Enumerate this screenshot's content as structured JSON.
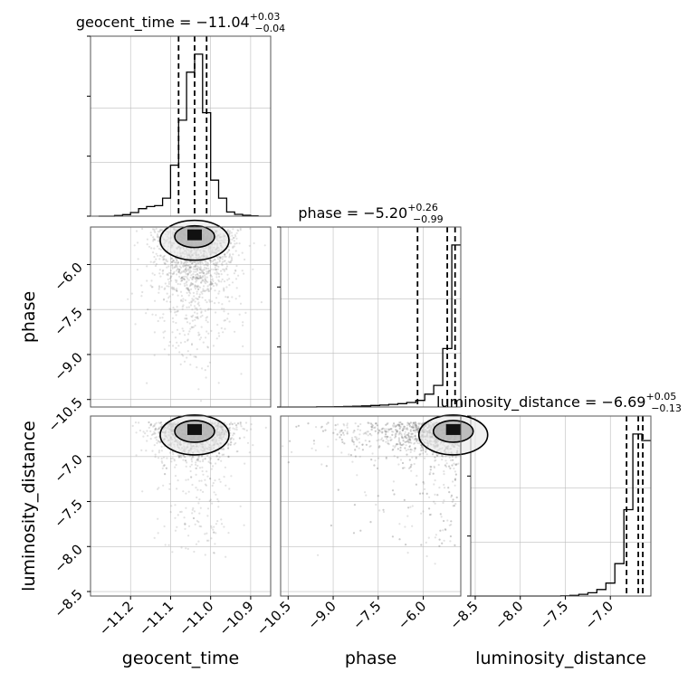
{
  "chart_data": {
    "type": "corner",
    "parameters": [
      "geocent_time",
      "phase",
      "luminosity_distance"
    ],
    "axis_labels": {
      "x": [
        "geocent_time",
        "phase",
        "luminosity_distance"
      ],
      "y": [
        "phase",
        "luminosity_distance"
      ]
    },
    "ranges": {
      "geocent_time": [
        -11.3,
        -10.85
      ],
      "phase": [
        -10.75,
        -4.75
      ],
      "luminosity_distance": [
        -8.55,
        -6.55
      ]
    },
    "ticks": {
      "geocent_time": {
        "values": [
          -11.2,
          -11.1,
          -11.0,
          -10.9
        ],
        "labels": [
          "−11.2",
          "−11.1",
          "−11.0",
          "−10.9"
        ]
      },
      "phase": {
        "values": [
          -10.5,
          -9.0,
          -7.5,
          -6.0
        ],
        "labels": [
          "−10.5",
          "−9.0",
          "−7.5",
          "−6.0"
        ]
      },
      "luminosity_distance": {
        "values": [
          -8.5,
          -8.0,
          -7.5,
          -7.0
        ],
        "labels": [
          "−8.5",
          "−8.0",
          "−7.5",
          "−7.0"
        ]
      }
    },
    "marginals": [
      {
        "parameter": "geocent_time",
        "title_main": "geocent_time = −11.04",
        "title_plus": "+0.03",
        "title_minus": "−0.04",
        "quantiles": [
          -11.08,
          -11.04,
          -11.01
        ],
        "bins": [
          -11.28,
          -11.26,
          -11.24,
          -11.22,
          -11.2,
          -11.18,
          -11.16,
          -11.14,
          -11.12,
          -11.1,
          -11.08,
          -11.06,
          -11.04,
          -11.02,
          -11.0,
          -10.98,
          -10.96,
          -10.94,
          -10.92,
          -10.9,
          -10.88
        ],
        "counts": [
          0,
          0,
          2,
          5,
          12,
          25,
          32,
          35,
          60,
          170,
          320,
          480,
          540,
          345,
          120,
          60,
          14,
          6,
          3,
          1
        ]
      },
      {
        "parameter": "phase",
        "title_main": "phase = −5.20",
        "title_plus": "+0.26",
        "title_minus": "−0.99",
        "quantiles": [
          -6.19,
          -5.2,
          -4.94
        ],
        "bins": [
          -10.75,
          -10.45,
          -10.15,
          -9.85,
          -9.55,
          -9.25,
          -8.95,
          -8.65,
          -8.35,
          -8.05,
          -7.75,
          -7.45,
          -7.15,
          -6.85,
          -6.55,
          -6.25,
          -5.95,
          -5.65,
          -5.35,
          -5.05,
          -4.75
        ],
        "counts": [
          0,
          0,
          0,
          0,
          1,
          1,
          2,
          3,
          4,
          6,
          8,
          10,
          14,
          18,
          24,
          35,
          68,
          115,
          310,
          860
        ]
      },
      {
        "parameter": "luminosity_distance",
        "title_main": "luminosity_distance = −6.69",
        "title_plus": "+0.05",
        "title_minus": "−0.13",
        "quantiles": [
          -6.82,
          -6.69,
          -6.64
        ],
        "bins": [
          -8.55,
          -8.45,
          -8.35,
          -8.25,
          -8.15,
          -8.05,
          -7.95,
          -7.85,
          -7.75,
          -7.65,
          -7.55,
          -7.45,
          -7.35,
          -7.25,
          -7.15,
          -7.05,
          -6.95,
          -6.85,
          -6.75,
          -6.65,
          -6.55
        ],
        "counts": [
          0,
          0,
          0,
          0,
          0,
          0,
          0,
          0,
          0,
          0,
          1,
          3,
          8,
          15,
          30,
          60,
          150,
          400,
          750,
          720
        ]
      }
    ],
    "scatter_hints": [
      {
        "x": "geocent_time",
        "y": "phase",
        "center": [
          -11.04,
          -5.2
        ],
        "spread": [
          0.05,
          1.0
        ],
        "count": 1600
      },
      {
        "x": "geocent_time",
        "y": "luminosity_distance",
        "center": [
          -11.04,
          -6.69
        ],
        "spread": [
          0.05,
          0.15
        ],
        "count": 1600
      },
      {
        "x": "phase",
        "y": "luminosity_distance",
        "center": [
          -5.2,
          -6.69
        ],
        "spread": [
          1.0,
          0.15
        ],
        "count": 1600
      }
    ],
    "grid": true,
    "colors": {
      "axes": "#555555",
      "grid": "#bdbdbd",
      "scatter": "#7a7a7a",
      "hist": "#000000",
      "quantile": "#000000"
    }
  }
}
